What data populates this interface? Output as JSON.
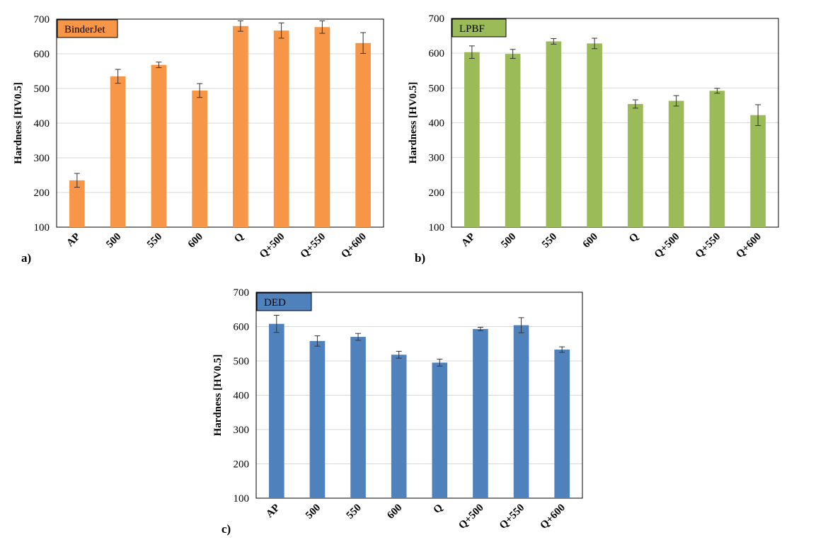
{
  "chart_data": [
    {
      "type": "bar",
      "panel_label": "a)",
      "series_label": "BinderJet",
      "ylabel": "Hardness [HV0.5]",
      "xlabel": "",
      "categories": [
        "AP",
        "500",
        "550",
        "600",
        "Q",
        "Q+500",
        "Q+550",
        "Q+600"
      ],
      "values": [
        235,
        535,
        568,
        494,
        680,
        667,
        677,
        631
      ],
      "errors": [
        20,
        20,
        8,
        20,
        15,
        22,
        18,
        30
      ],
      "ylim": [
        100,
        700
      ],
      "yticks": [
        "100",
        "200",
        "300",
        "400",
        "500",
        "600",
        "700"
      ],
      "color": "#F79646",
      "grid": true
    },
    {
      "type": "bar",
      "panel_label": "b)",
      "series_label": "LPBF",
      "ylabel": "Hardness [HV0.5]",
      "xlabel": "",
      "categories": [
        "AP",
        "500",
        "550",
        "600",
        "Q",
        "Q+500",
        "Q+550",
        "Q+600"
      ],
      "values": [
        603,
        598,
        634,
        628,
        454,
        463,
        492,
        422
      ],
      "errors": [
        18,
        13,
        8,
        15,
        12,
        15,
        7,
        30
      ],
      "ylim": [
        100,
        700
      ],
      "yticks": [
        "100",
        "200",
        "300",
        "400",
        "500",
        "600",
        "700"
      ],
      "color": "#9BBB59",
      "grid": true
    },
    {
      "type": "bar",
      "panel_label": "c)",
      "series_label": "DED",
      "ylabel": "Hardness [HV0.5]",
      "xlabel": "",
      "categories": [
        "AP",
        "500",
        "550",
        "600",
        "Q",
        "Q+500",
        "Q+550",
        "Q+600"
      ],
      "values": [
        608,
        558,
        570,
        518,
        495,
        593,
        604,
        533
      ],
      "errors": [
        25,
        15,
        10,
        10,
        10,
        5,
        22,
        8
      ],
      "ylim": [
        100,
        700
      ],
      "yticks": [
        "100",
        "200",
        "300",
        "400",
        "500",
        "600",
        "700"
      ],
      "color": "#4F81BD",
      "grid": true
    }
  ]
}
